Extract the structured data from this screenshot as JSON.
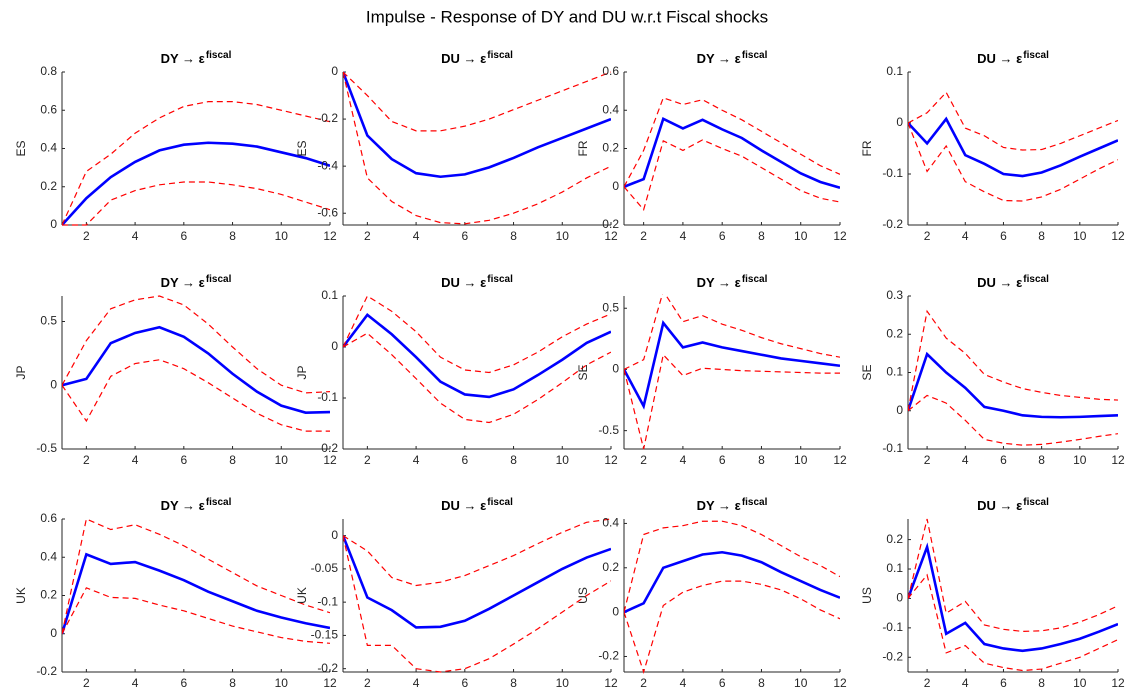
{
  "title": "Impulse - Response of DY and DU w.r.t Fiscal shocks",
  "chart_data": [
    {
      "type": "line",
      "title": "DY → ε",
      "title_sup": "fiscal",
      "ylabel": "ES",
      "x": [
        1,
        2,
        3,
        4,
        5,
        6,
        7,
        8,
        9,
        10,
        11,
        12
      ],
      "xlim": [
        1,
        12
      ],
      "xticks": [
        2,
        4,
        6,
        8,
        10,
        12
      ],
      "ylim": [
        0,
        0.8
      ],
      "yticks": [
        0,
        0.2,
        0.4,
        0.6,
        0.8
      ],
      "series": [
        {
          "color": "#0000ff",
          "dash": false,
          "values": [
            0,
            0.14,
            0.25,
            0.33,
            0.39,
            0.42,
            0.43,
            0.425,
            0.41,
            0.38,
            0.35,
            0.31
          ]
        },
        {
          "color": "#ff0000",
          "dash": true,
          "values": [
            0,
            0,
            0.13,
            0.18,
            0.21,
            0.225,
            0.225,
            0.21,
            0.19,
            0.16,
            0.12,
            0.08
          ]
        },
        {
          "color": "#ff0000",
          "dash": true,
          "values": [
            0,
            0.28,
            0.37,
            0.48,
            0.56,
            0.62,
            0.645,
            0.645,
            0.63,
            0.6,
            0.57,
            0.54
          ]
        }
      ]
    },
    {
      "type": "line",
      "title": "DU → ε",
      "title_sup": "fiscal",
      "ylabel": "ES",
      "x": [
        1,
        2,
        3,
        4,
        5,
        6,
        7,
        8,
        9,
        10,
        11,
        12
      ],
      "xlim": [
        1,
        12
      ],
      "xticks": [
        2,
        4,
        6,
        8,
        10,
        12
      ],
      "ylim": [
        -0.65,
        0
      ],
      "yticks": [
        -0.6,
        -0.4,
        -0.2,
        0
      ],
      "series": [
        {
          "color": "#0000ff",
          "dash": false,
          "values": [
            0,
            -0.27,
            -0.37,
            -0.43,
            -0.445,
            -0.435,
            -0.405,
            -0.365,
            -0.32,
            -0.28,
            -0.24,
            -0.2
          ]
        },
        {
          "color": "#ff0000",
          "dash": true,
          "values": [
            0,
            -0.45,
            -0.55,
            -0.61,
            -0.64,
            -0.645,
            -0.63,
            -0.6,
            -0.56,
            -0.51,
            -0.45,
            -0.4
          ]
        },
        {
          "color": "#ff0000",
          "dash": true,
          "values": [
            0,
            -0.1,
            -0.21,
            -0.25,
            -0.25,
            -0.23,
            -0.2,
            -0.16,
            -0.12,
            -0.08,
            -0.04,
            0
          ]
        }
      ]
    },
    {
      "type": "line",
      "title": "DY → ε",
      "title_sup": "fiscal",
      "ylabel": "FR",
      "x": [
        1,
        2,
        3,
        4,
        5,
        6,
        7,
        8,
        9,
        10,
        11,
        12
      ],
      "xlim": [
        1,
        12
      ],
      "xticks": [
        2,
        4,
        6,
        8,
        10,
        12
      ],
      "ylim": [
        -0.2,
        0.6
      ],
      "yticks": [
        -0.2,
        0,
        0.2,
        0.4,
        0.6
      ],
      "series": [
        {
          "color": "#0000ff",
          "dash": false,
          "values": [
            0,
            0.04,
            0.355,
            0.305,
            0.35,
            0.3,
            0.255,
            0.19,
            0.13,
            0.07,
            0.025,
            -0.005
          ]
        },
        {
          "color": "#ff0000",
          "dash": true,
          "values": [
            0,
            -0.12,
            0.24,
            0.19,
            0.245,
            0.2,
            0.16,
            0.1,
            0.04,
            -0.02,
            -0.06,
            -0.08
          ]
        },
        {
          "color": "#ff0000",
          "dash": true,
          "values": [
            0,
            0.19,
            0.465,
            0.43,
            0.455,
            0.4,
            0.35,
            0.29,
            0.23,
            0.17,
            0.11,
            0.065
          ]
        }
      ]
    },
    {
      "type": "line",
      "title": "DU → ε",
      "title_sup": "fiscal",
      "ylabel": "FR",
      "x": [
        1,
        2,
        3,
        4,
        5,
        6,
        7,
        8,
        9,
        10,
        11,
        12
      ],
      "xlim": [
        1,
        12
      ],
      "xticks": [
        2,
        4,
        6,
        8,
        10,
        12
      ],
      "ylim": [
        -0.2,
        0.1
      ],
      "yticks": [
        -0.2,
        -0.1,
        0,
        0.1
      ],
      "series": [
        {
          "color": "#0000ff",
          "dash": false,
          "values": [
            0,
            -0.04,
            0.008,
            -0.063,
            -0.08,
            -0.1,
            -0.104,
            -0.097,
            -0.083,
            -0.066,
            -0.05,
            -0.034
          ]
        },
        {
          "color": "#ff0000",
          "dash": true,
          "values": [
            0,
            -0.095,
            -0.045,
            -0.115,
            -0.135,
            -0.152,
            -0.153,
            -0.145,
            -0.13,
            -0.11,
            -0.09,
            -0.072
          ]
        },
        {
          "color": "#ff0000",
          "dash": true,
          "values": [
            0,
            0.02,
            0.06,
            -0.01,
            -0.025,
            -0.048,
            -0.053,
            -0.052,
            -0.04,
            -0.025,
            -0.01,
            0.005
          ]
        }
      ]
    },
    {
      "type": "line",
      "title": "DY → ε",
      "title_sup": "fiscal",
      "ylabel": "JP",
      "x": [
        1,
        2,
        3,
        4,
        5,
        6,
        7,
        8,
        9,
        10,
        11,
        12
      ],
      "xlim": [
        1,
        12
      ],
      "xticks": [
        2,
        4,
        6,
        8,
        10,
        12
      ],
      "ylim": [
        -0.5,
        0.7
      ],
      "yticks": [
        -0.5,
        0,
        0.5
      ],
      "series": [
        {
          "color": "#0000ff",
          "dash": false,
          "values": [
            0,
            0.05,
            0.33,
            0.41,
            0.455,
            0.38,
            0.25,
            0.09,
            -0.05,
            -0.16,
            -0.215,
            -0.21
          ]
        },
        {
          "color": "#ff0000",
          "dash": true,
          "values": [
            0,
            -0.28,
            0.07,
            0.17,
            0.2,
            0.13,
            0.02,
            -0.1,
            -0.22,
            -0.31,
            -0.36,
            -0.36
          ]
        },
        {
          "color": "#ff0000",
          "dash": true,
          "values": [
            0,
            0.35,
            0.6,
            0.67,
            0.7,
            0.63,
            0.48,
            0.3,
            0.13,
            0,
            -0.06,
            -0.05
          ]
        }
      ]
    },
    {
      "type": "line",
      "title": "DU → ε",
      "title_sup": "fiscal",
      "ylabel": "JP",
      "x": [
        1,
        2,
        3,
        4,
        5,
        6,
        7,
        8,
        9,
        10,
        11,
        12
      ],
      "xlim": [
        1,
        12
      ],
      "xticks": [
        2,
        4,
        6,
        8,
        10,
        12
      ],
      "ylim": [
        -0.2,
        0.1
      ],
      "yticks": [
        -0.2,
        -0.1,
        0,
        0.1
      ],
      "series": [
        {
          "color": "#0000ff",
          "dash": false,
          "values": [
            0,
            0.063,
            0.025,
            -0.02,
            -0.068,
            -0.093,
            -0.098,
            -0.083,
            -0.055,
            -0.025,
            0.008,
            0.03
          ]
        },
        {
          "color": "#ff0000",
          "dash": true,
          "values": [
            0,
            0.027,
            -0.015,
            -0.062,
            -0.11,
            -0.142,
            -0.148,
            -0.132,
            -0.103,
            -0.07,
            -0.035,
            -0.01
          ]
        },
        {
          "color": "#ff0000",
          "dash": true,
          "values": [
            0,
            0.1,
            0.07,
            0.03,
            -0.02,
            -0.045,
            -0.05,
            -0.035,
            -0.01,
            0.02,
            0.045,
            0.065
          ]
        }
      ]
    },
    {
      "type": "line",
      "title": "DY → ε",
      "title_sup": "fiscal",
      "ylabel": "SE",
      "x": [
        1,
        2,
        3,
        4,
        5,
        6,
        7,
        8,
        9,
        10,
        11,
        12
      ],
      "xlim": [
        1,
        12
      ],
      "xticks": [
        2,
        4,
        6,
        8,
        10,
        12
      ],
      "ylim": [
        -0.65,
        0.6
      ],
      "yticks": [
        -0.5,
        0,
        0.5
      ],
      "series": [
        {
          "color": "#0000ff",
          "dash": false,
          "values": [
            0,
            -0.3,
            0.38,
            0.18,
            0.22,
            0.18,
            0.15,
            0.12,
            0.09,
            0.07,
            0.05,
            0.03
          ]
        },
        {
          "color": "#ff0000",
          "dash": true,
          "values": [
            0,
            -0.65,
            0.12,
            -0.05,
            0.01,
            0,
            -0.01,
            -0.015,
            -0.02,
            -0.025,
            -0.03,
            -0.03
          ]
        },
        {
          "color": "#ff0000",
          "dash": true,
          "values": [
            0,
            0.08,
            0.64,
            0.39,
            0.44,
            0.37,
            0.32,
            0.26,
            0.21,
            0.17,
            0.13,
            0.1
          ]
        }
      ]
    },
    {
      "type": "line",
      "title": "DU → ε",
      "title_sup": "fiscal",
      "ylabel": "SE",
      "x": [
        1,
        2,
        3,
        4,
        5,
        6,
        7,
        8,
        9,
        10,
        11,
        12
      ],
      "xlim": [
        1,
        12
      ],
      "xticks": [
        2,
        4,
        6,
        8,
        10,
        12
      ],
      "ylim": [
        -0.1,
        0.3
      ],
      "yticks": [
        -0.1,
        0,
        0.1,
        0.2,
        0.3
      ],
      "series": [
        {
          "color": "#0000ff",
          "dash": false,
          "values": [
            0,
            0.148,
            0.1,
            0.06,
            0.01,
            0,
            -0.012,
            -0.016,
            -0.017,
            -0.016,
            -0.014,
            -0.012
          ]
        },
        {
          "color": "#ff0000",
          "dash": true,
          "values": [
            0,
            0.04,
            0.02,
            -0.025,
            -0.075,
            -0.085,
            -0.09,
            -0.088,
            -0.082,
            -0.075,
            -0.067,
            -0.06
          ]
        },
        {
          "color": "#ff0000",
          "dash": true,
          "values": [
            0,
            0.26,
            0.19,
            0.15,
            0.095,
            0.075,
            0.058,
            0.048,
            0.04,
            0.035,
            0.03,
            0.028
          ]
        }
      ]
    },
    {
      "type": "line",
      "title": "DY → ε",
      "title_sup": "fiscal",
      "ylabel": "UK",
      "x": [
        1,
        2,
        3,
        4,
        5,
        6,
        7,
        8,
        9,
        10,
        11,
        12
      ],
      "xlim": [
        1,
        12
      ],
      "xticks": [
        2,
        4,
        6,
        8,
        10,
        12
      ],
      "ylim": [
        -0.2,
        0.6
      ],
      "yticks": [
        -0.2,
        0,
        0.2,
        0.4,
        0.6
      ],
      "series": [
        {
          "color": "#0000ff",
          "dash": false,
          "values": [
            0,
            0.415,
            0.365,
            0.375,
            0.33,
            0.28,
            0.22,
            0.17,
            0.12,
            0.085,
            0.055,
            0.03
          ]
        },
        {
          "color": "#ff0000",
          "dash": true,
          "values": [
            0,
            0.24,
            0.19,
            0.185,
            0.15,
            0.12,
            0.08,
            0.04,
            0.01,
            -0.02,
            -0.04,
            -0.05
          ]
        },
        {
          "color": "#ff0000",
          "dash": true,
          "values": [
            0,
            0.6,
            0.545,
            0.57,
            0.52,
            0.46,
            0.39,
            0.32,
            0.25,
            0.2,
            0.15,
            0.11
          ]
        }
      ]
    },
    {
      "type": "line",
      "title": "DU → ε",
      "title_sup": "fiscal",
      "ylabel": "UK",
      "x": [
        1,
        2,
        3,
        4,
        5,
        6,
        7,
        8,
        9,
        10,
        11,
        12
      ],
      "xlim": [
        1,
        12
      ],
      "xticks": [
        2,
        4,
        6,
        8,
        10,
        12
      ],
      "ylim": [
        -0.205,
        0.025
      ],
      "yticks": [
        -0.2,
        -0.15,
        -0.1,
        -0.05,
        0
      ],
      "series": [
        {
          "color": "#0000ff",
          "dash": false,
          "values": [
            0,
            -0.093,
            -0.112,
            -0.138,
            -0.137,
            -0.128,
            -0.11,
            -0.09,
            -0.07,
            -0.05,
            -0.033,
            -0.02
          ]
        },
        {
          "color": "#ff0000",
          "dash": true,
          "values": [
            0,
            -0.165,
            -0.165,
            -0.2,
            -0.205,
            -0.2,
            -0.185,
            -0.163,
            -0.14,
            -0.115,
            -0.09,
            -0.068
          ]
        },
        {
          "color": "#ff0000",
          "dash": true,
          "values": [
            0,
            -0.023,
            -0.063,
            -0.075,
            -0.07,
            -0.06,
            -0.045,
            -0.03,
            -0.012,
            0.005,
            0.02,
            0.025
          ]
        }
      ]
    },
    {
      "type": "line",
      "title": "DY → ε",
      "title_sup": "fiscal",
      "ylabel": "US",
      "x": [
        1,
        2,
        3,
        4,
        5,
        6,
        7,
        8,
        9,
        10,
        11,
        12
      ],
      "xlim": [
        1,
        12
      ],
      "xticks": [
        2,
        4,
        6,
        8,
        10,
        12
      ],
      "ylim": [
        -0.27,
        0.42
      ],
      "yticks": [
        -0.2,
        0,
        0.2,
        0.4
      ],
      "series": [
        {
          "color": "#0000ff",
          "dash": false,
          "values": [
            0,
            0.04,
            0.2,
            0.23,
            0.26,
            0.27,
            0.255,
            0.225,
            0.18,
            0.14,
            0.1,
            0.065
          ]
        },
        {
          "color": "#ff0000",
          "dash": true,
          "values": [
            0,
            -0.27,
            0.03,
            0.09,
            0.12,
            0.14,
            0.14,
            0.125,
            0.1,
            0.06,
            0.01,
            -0.03
          ]
        },
        {
          "color": "#ff0000",
          "dash": true,
          "values": [
            0,
            0.35,
            0.38,
            0.39,
            0.41,
            0.41,
            0.39,
            0.35,
            0.3,
            0.25,
            0.21,
            0.16
          ]
        }
      ]
    },
    {
      "type": "line",
      "title": "DU → ε",
      "title_sup": "fiscal",
      "ylabel": "US",
      "x": [
        1,
        2,
        3,
        4,
        5,
        6,
        7,
        8,
        9,
        10,
        11,
        12
      ],
      "xlim": [
        1,
        12
      ],
      "xticks": [
        2,
        4,
        6,
        8,
        10,
        12
      ],
      "ylim": [
        -0.25,
        0.27
      ],
      "yticks": [
        -0.2,
        -0.1,
        0,
        0.1,
        0.2
      ],
      "series": [
        {
          "color": "#0000ff",
          "dash": false,
          "values": [
            0,
            0.175,
            -0.12,
            -0.083,
            -0.155,
            -0.17,
            -0.178,
            -0.17,
            -0.155,
            -0.137,
            -0.113,
            -0.087
          ]
        },
        {
          "color": "#ff0000",
          "dash": true,
          "values": [
            0,
            0.08,
            -0.185,
            -0.16,
            -0.22,
            -0.235,
            -0.245,
            -0.24,
            -0.22,
            -0.2,
            -0.17,
            -0.14
          ]
        },
        {
          "color": "#ff0000",
          "dash": true,
          "values": [
            0,
            0.27,
            -0.05,
            -0.01,
            -0.09,
            -0.105,
            -0.112,
            -0.11,
            -0.1,
            -0.08,
            -0.055,
            -0.025
          ]
        }
      ]
    }
  ]
}
